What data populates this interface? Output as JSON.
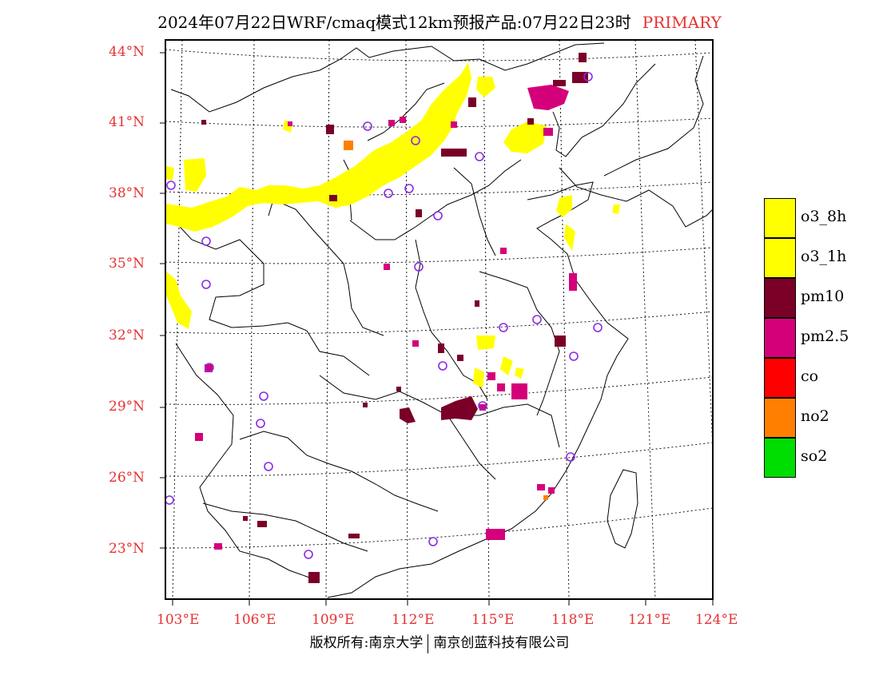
{
  "header": {
    "title": "2024年07月22日WRF/cmaq模式12km预报产品:07月22日23时",
    "primary": "PRIMARY"
  },
  "map": {
    "lat_labels": [
      "44°N",
      "41°N",
      "38°N",
      "35°N",
      "32°N",
      "29°N",
      "26°N",
      "23°N"
    ],
    "lon_labels": [
      "103°E",
      "106°E",
      "109°E",
      "112°E",
      "115°E",
      "118°E",
      "121°E",
      "124°E"
    ],
    "colors": {
      "o3": "#ffff00",
      "pm10": "#7a0028",
      "pm25": "#d4007a",
      "no2": "#ff8000",
      "station": "#8a2be2",
      "border": "#000000",
      "grid": "#000000"
    }
  },
  "legend": {
    "items": [
      {
        "label": "o3_8h",
        "color": "#ffff00"
      },
      {
        "label": "o3_1h",
        "color": "#ffff00"
      },
      {
        "label": "pm10",
        "color": "#7a0028"
      },
      {
        "label": "pm2.5",
        "color": "#d4007a"
      },
      {
        "label": "co",
        "color": "#ff0000"
      },
      {
        "label": "no2",
        "color": "#ff8000"
      },
      {
        "label": "so2",
        "color": "#00dd00"
      }
    ]
  },
  "footer": {
    "left": "版权所有:南京大学",
    "right": "南京创蓝科技有限公司"
  }
}
